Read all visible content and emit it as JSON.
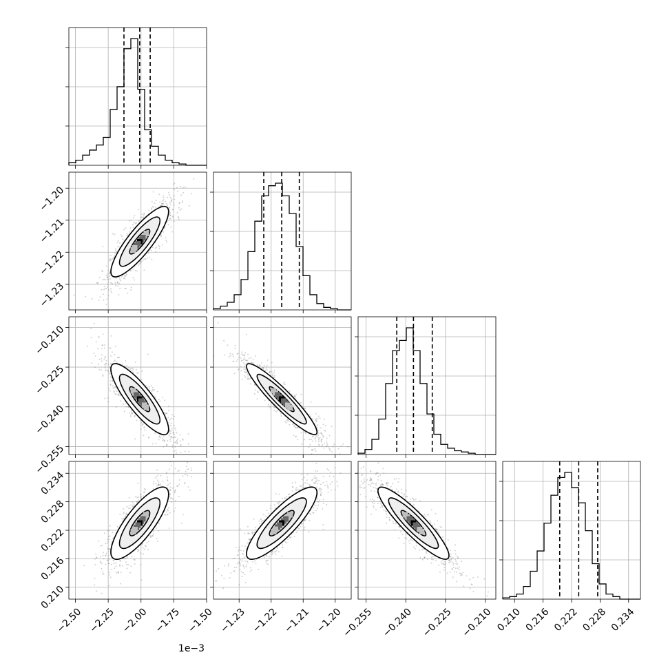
{
  "chart_data": {
    "type": "corner",
    "offset_text": "1e−3",
    "parameters": [
      {
        "range": [
          -0.00255,
          -0.0015
        ],
        "ticks": [
          "−2.50",
          "−2.25",
          "−2.00",
          "−1.75",
          "−1.50"
        ],
        "tick_values": [
          -0.0025,
          -0.00225,
          -0.002,
          -0.00175,
          -0.0015
        ],
        "quantiles": [
          -0.00213,
          -0.00201,
          -0.00193
        ],
        "center": -0.00201,
        "sd": 0.00011
      },
      {
        "range": [
          -1.238,
          -1.195
        ],
        "ticks": [
          "−1.23",
          "−1.22",
          "−1.21",
          "−1.20"
        ],
        "tick_values": [
          -1.23,
          -1.22,
          -1.21,
          -1.2
        ],
        "quantiles": [
          -1.2223,
          -1.2167,
          -1.2112
        ],
        "center": -1.2167,
        "sd": 0.0055
      },
      {
        "range": [
          -0.258,
          -0.206
        ],
        "ticks": [
          "−0.255",
          "−0.240",
          "−0.225",
          "−0.210"
        ],
        "tick_values": [
          -0.255,
          -0.24,
          -0.225,
          -0.21
        ],
        "quantiles": [
          -0.2434,
          -0.2371,
          -0.23
        ],
        "center": -0.2371,
        "sd": 0.0067
      },
      {
        "range": [
          0.2075,
          0.2365
        ],
        "ticks": [
          "0.210",
          "0.216",
          "0.222",
          "0.228",
          "0.234"
        ],
        "tick_values": [
          0.21,
          0.216,
          0.222,
          0.228,
          0.234
        ],
        "quantiles": [
          0.2195,
          0.2235,
          0.2275
        ],
        "center": 0.2235,
        "sd": 0.0038
      }
    ],
    "correlations": {
      "1_0": 0.85,
      "2_0": -0.85,
      "2_1": -0.93,
      "3_0": 0.8,
      "3_1": 0.85,
      "3_2": -0.9
    },
    "histograms": [
      [
        2,
        4,
        8,
        12,
        16,
        22,
        44,
        62,
        92,
        100,
        60,
        28,
        15,
        8,
        4,
        2,
        1,
        0,
        0,
        0
      ],
      [
        1,
        3,
        6,
        12,
        24,
        46,
        70,
        90,
        98,
        100,
        90,
        76,
        50,
        27,
        12,
        5,
        2,
        1,
        0,
        0
      ],
      [
        1,
        4,
        12,
        28,
        56,
        82,
        90,
        100,
        82,
        56,
        32,
        16,
        8,
        5,
        3,
        2,
        1,
        0,
        0,
        0
      ],
      [
        1,
        2,
        4,
        10,
        22,
        38,
        60,
        82,
        96,
        100,
        88,
        76,
        54,
        28,
        12,
        4,
        2,
        0,
        0,
        0
      ]
    ],
    "grid": true
  }
}
